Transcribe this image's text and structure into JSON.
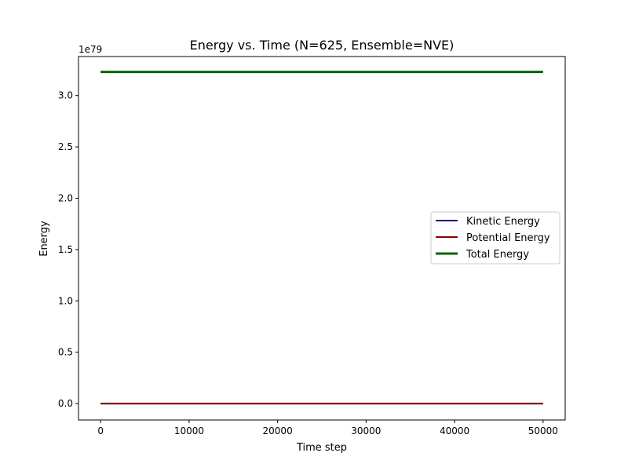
{
  "chart_data": {
    "type": "line",
    "title": "Energy vs. Time (N=625, Ensemble=NVE)",
    "xlabel": "Time step",
    "ylabel": "Energy",
    "y_scale_label": "1e79",
    "xlim": [
      -2500,
      52500
    ],
    "ylim": [
      -0.16,
      3.38
    ],
    "xticks": [
      0,
      10000,
      20000,
      30000,
      40000,
      50000
    ],
    "xtick_labels": [
      "0",
      "10000",
      "20000",
      "30000",
      "40000",
      "50000"
    ],
    "yticks": [
      0.0,
      0.5,
      1.0,
      1.5,
      2.0,
      2.5,
      3.0
    ],
    "ytick_labels": [
      "0.0",
      "0.5",
      "1.0",
      "1.5",
      "2.0",
      "2.5",
      "3.0"
    ],
    "grid": false,
    "legend_position": "center-right",
    "series": [
      {
        "name": "Kinetic Energy",
        "color": "#00008b",
        "x": [
          0,
          50000
        ],
        "y": [
          0.0,
          0.0
        ]
      },
      {
        "name": "Potential Energy",
        "color": "#8b0000",
        "x": [
          0,
          50000
        ],
        "y": [
          0.0,
          0.0
        ]
      },
      {
        "name": "Total Energy",
        "color": "#006400",
        "x": [
          0,
          50000
        ],
        "y": [
          3.23,
          3.23
        ]
      }
    ]
  }
}
